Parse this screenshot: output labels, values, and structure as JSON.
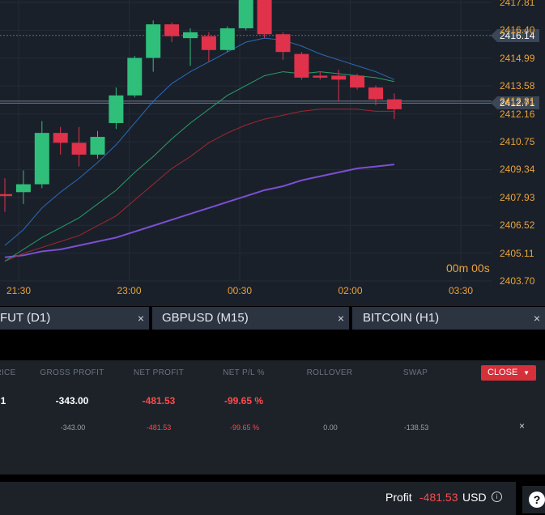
{
  "chart": {
    "price_labels": [
      "2417.81",
      "2416.40",
      "2414.99",
      "2413.58",
      "2412.81",
      "2412.16",
      "2410.75",
      "2409.34",
      "2407.93",
      "2406.52",
      "2405.11",
      "2403.70"
    ],
    "time_labels": [
      "21:30",
      "23:00",
      "00:30",
      "02:00",
      "03:30"
    ],
    "current_tag": "2416.14",
    "bid_tag": "2412.71",
    "countdown": "00m 00s",
    "colors": {
      "up": "#2fbf7a",
      "down": "#e0324b",
      "ma_blue": "#2a6bb8",
      "ma_green": "#26a06a",
      "ma_red": "#a02830",
      "ma_purple": "#7b4fd4",
      "axis_text": "#e8a33b"
    },
    "candles": [
      {
        "o": 2408.1,
        "h": 2408.9,
        "l": 2407.2,
        "c": 2408.0
      },
      {
        "o": 2408.2,
        "h": 2409.3,
        "l": 2407.6,
        "c": 2408.6
      },
      {
        "o": 2408.6,
        "h": 2411.8,
        "l": 2408.4,
        "c": 2411.2
      },
      {
        "o": 2411.2,
        "h": 2411.5,
        "l": 2410.1,
        "c": 2410.7
      },
      {
        "o": 2410.7,
        "h": 2411.5,
        "l": 2409.5,
        "c": 2410.1
      },
      {
        "o": 2410.1,
        "h": 2411.3,
        "l": 2409.9,
        "c": 2411.0
      },
      {
        "o": 2411.7,
        "h": 2413.5,
        "l": 2411.4,
        "c": 2413.1
      },
      {
        "o": 2413.1,
        "h": 2415.1,
        "l": 2413.0,
        "c": 2415.0
      },
      {
        "o": 2415.0,
        "h": 2416.9,
        "l": 2414.3,
        "c": 2416.7
      },
      {
        "o": 2416.7,
        "h": 2416.8,
        "l": 2415.8,
        "c": 2416.1
      },
      {
        "o": 2416.0,
        "h": 2416.5,
        "l": 2414.6,
        "c": 2416.3
      },
      {
        "o": 2416.1,
        "h": 2416.3,
        "l": 2414.8,
        "c": 2415.4
      },
      {
        "o": 2415.4,
        "h": 2416.6,
        "l": 2415.3,
        "c": 2416.5
      },
      {
        "o": 2416.5,
        "h": 2418.4,
        "l": 2416.4,
        "c": 2418.1
      },
      {
        "o": 2418.0,
        "h": 2418.1,
        "l": 2416.0,
        "c": 2416.2
      },
      {
        "o": 2416.2,
        "h": 2416.3,
        "l": 2414.9,
        "c": 2415.3
      },
      {
        "o": 2415.2,
        "h": 2415.3,
        "l": 2413.9,
        "c": 2414.0
      },
      {
        "o": 2414.1,
        "h": 2414.3,
        "l": 2413.9,
        "c": 2414.0
      },
      {
        "o": 2414.1,
        "h": 2414.4,
        "l": 2412.8,
        "c": 2413.9
      },
      {
        "o": 2414.1,
        "h": 2414.2,
        "l": 2413.4,
        "c": 2413.5
      },
      {
        "o": 2413.5,
        "h": 2413.6,
        "l": 2412.6,
        "c": 2412.9
      },
      {
        "o": 2412.9,
        "h": 2413.2,
        "l": 2411.9,
        "c": 2412.4
      }
    ],
    "ma_blue": [
      2405.5,
      2406.3,
      2407.4,
      2408.2,
      2408.9,
      2409.7,
      2410.6,
      2411.7,
      2412.8,
      2413.7,
      2414.3,
      2414.8,
      2415.3,
      2415.8,
      2416.0,
      2415.9,
      2415.6,
      2415.2,
      2414.9,
      2414.6,
      2414.3,
      2413.9
    ],
    "ma_green": [
      2404.7,
      2405.3,
      2405.9,
      2406.4,
      2406.9,
      2407.6,
      2408.3,
      2409.2,
      2410.0,
      2410.9,
      2411.7,
      2412.4,
      2413.1,
      2413.6,
      2414.1,
      2414.3,
      2414.2,
      2414.3,
      2414.2,
      2414.1,
      2414.0,
      2413.8
    ],
    "ma_red": [
      2404.7,
      2405.1,
      2405.4,
      2405.7,
      2406.0,
      2406.5,
      2407.0,
      2407.8,
      2408.6,
      2409.4,
      2410.0,
      2410.7,
      2411.2,
      2411.6,
      2411.9,
      2412.1,
      2412.3,
      2412.4,
      2412.4,
      2412.4,
      2412.3,
      2412.3
    ],
    "ma_purple": [
      2404.9,
      2405.0,
      2405.2,
      2405.3,
      2405.5,
      2405.7,
      2405.9,
      2406.2,
      2406.5,
      2406.8,
      2407.1,
      2407.4,
      2407.7,
      2408.0,
      2408.3,
      2408.5,
      2408.8,
      2409.0,
      2409.2,
      2409.4,
      2409.5,
      2409.6
    ]
  },
  "tabs": [
    {
      "label": "FUT (D1)",
      "close": "×"
    },
    {
      "label": "GBPUSD (M15)",
      "close": "×"
    },
    {
      "label": "BITCOIN (H1)",
      "close": "×"
    }
  ],
  "positions": {
    "headers": [
      "RICE",
      "GROSS PROFIT",
      "NET PROFIT",
      "NET P/L %",
      "ROLLOVER",
      "SWAP"
    ],
    "close_button": "CLOSE",
    "close_caret": "▼",
    "summary": {
      "price": "1",
      "gross_profit": "-343.00",
      "net_profit": "-481.53",
      "net_pl_pct": "-99.65 %"
    },
    "row": {
      "price": "",
      "gross_profit": "-343.00",
      "net_profit": "-481.53",
      "net_pl_pct": "-99.65 %",
      "rollover": "0.00",
      "swap": "-138.53",
      "close": "×"
    }
  },
  "status": {
    "profit_label": "Profit",
    "profit_value": "-481.53",
    "currency": "USD",
    "info": "i",
    "help": "?"
  }
}
